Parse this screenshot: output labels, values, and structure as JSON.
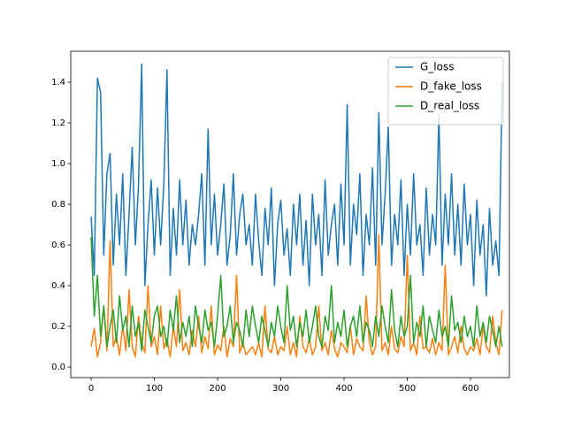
{
  "chart_data": {
    "type": "line",
    "x": [
      0,
      5,
      10,
      15,
      20,
      25,
      30,
      35,
      40,
      45,
      50,
      55,
      60,
      65,
      70,
      75,
      80,
      85,
      90,
      95,
      100,
      105,
      110,
      115,
      120,
      125,
      130,
      135,
      140,
      145,
      150,
      155,
      160,
      165,
      170,
      175,
      180,
      185,
      190,
      195,
      200,
      205,
      210,
      215,
      220,
      225,
      230,
      235,
      240,
      245,
      250,
      255,
      260,
      265,
      270,
      275,
      280,
      285,
      290,
      295,
      300,
      305,
      310,
      315,
      320,
      325,
      330,
      335,
      340,
      345,
      350,
      355,
      360,
      365,
      370,
      375,
      380,
      385,
      390,
      395,
      400,
      405,
      410,
      415,
      420,
      425,
      430,
      435,
      440,
      445,
      450,
      455,
      460,
      465,
      470,
      475,
      480,
      485,
      490,
      495,
      500,
      505,
      510,
      515,
      520,
      525,
      530,
      535,
      540,
      545,
      550,
      555,
      560,
      565,
      570,
      575,
      580,
      585,
      590,
      595,
      600,
      605,
      610,
      615,
      620,
      625,
      630,
      635,
      640,
      645,
      650
    ],
    "series": [
      {
        "name": "G_loss",
        "color": "#1f77b4",
        "values": [
          0.74,
          0.45,
          1.42,
          1.35,
          0.55,
          0.95,
          1.05,
          0.5,
          0.85,
          0.6,
          0.95,
          0.45,
          0.75,
          1.08,
          0.6,
          0.9,
          1.49,
          0.4,
          0.7,
          0.92,
          0.55,
          0.88,
          0.6,
          0.9,
          1.46,
          0.45,
          0.78,
          0.55,
          0.92,
          0.6,
          0.82,
          0.5,
          0.7,
          0.6,
          0.75,
          0.95,
          0.5,
          1.17,
          0.6,
          0.85,
          0.55,
          0.7,
          0.9,
          0.5,
          0.65,
          0.95,
          0.55,
          0.75,
          0.85,
          0.6,
          0.7,
          0.5,
          0.85,
          0.62,
          0.45,
          0.78,
          0.6,
          0.88,
          0.4,
          0.7,
          0.82,
          0.55,
          0.68,
          0.45,
          0.8,
          0.6,
          0.85,
          0.5,
          0.72,
          0.4,
          0.85,
          0.6,
          0.75,
          0.45,
          0.92,
          0.55,
          0.7,
          0.8,
          0.5,
          0.9,
          0.6,
          1.29,
          0.5,
          0.8,
          0.65,
          0.95,
          0.45,
          0.75,
          0.6,
          0.98,
          0.5,
          1.25,
          0.6,
          0.85,
          1.18,
          0.5,
          0.75,
          0.6,
          0.92,
          0.45,
          0.8,
          0.55,
          0.95,
          0.6,
          0.7,
          0.45,
          0.88,
          0.55,
          0.75,
          0.6,
          1.24,
          0.5,
          0.85,
          0.6,
          0.95,
          0.55,
          0.8,
          0.5,
          0.9,
          0.6,
          0.75,
          0.4,
          0.82,
          0.55,
          0.7,
          0.35,
          0.78,
          0.5,
          0.62,
          0.45,
          1.4
        ]
      },
      {
        "name": "D_fake_loss",
        "color": "#ff7f0e",
        "values": [
          0.1,
          0.19,
          0.05,
          0.12,
          0.3,
          0.08,
          0.62,
          0.1,
          0.15,
          0.06,
          0.2,
          0.08,
          0.38,
          0.1,
          0.05,
          0.25,
          0.12,
          0.07,
          0.4,
          0.1,
          0.15,
          0.06,
          0.3,
          0.09,
          0.14,
          0.05,
          0.2,
          0.1,
          0.38,
          0.08,
          0.12,
          0.06,
          0.18,
          0.1,
          0.25,
          0.07,
          0.15,
          0.09,
          0.3,
          0.06,
          0.11,
          0.08,
          0.2,
          0.05,
          0.14,
          0.1,
          0.45,
          0.07,
          0.12,
          0.06,
          0.08,
          0.1,
          0.06,
          0.12,
          0.05,
          0.3,
          0.09,
          0.07,
          0.15,
          0.06,
          0.1,
          0.08,
          0.2,
          0.06,
          0.12,
          0.05,
          0.25,
          0.1,
          0.07,
          0.14,
          0.06,
          0.1,
          0.3,
          0.08,
          0.12,
          0.06,
          0.18,
          0.09,
          0.05,
          0.12,
          0.1,
          0.07,
          0.2,
          0.06,
          0.14,
          0.1,
          0.08,
          0.35,
          0.12,
          0.06,
          0.1,
          0.65,
          0.08,
          0.12,
          0.06,
          0.2,
          0.09,
          0.07,
          0.15,
          0.1,
          0.55,
          0.08,
          0.12,
          0.06,
          0.25,
          0.09,
          0.1,
          0.07,
          0.14,
          0.06,
          0.12,
          0.08,
          0.5,
          0.06,
          0.1,
          0.15,
          0.07,
          0.2,
          0.09,
          0.06,
          0.1,
          0.08,
          0.14,
          0.06,
          0.2,
          0.1,
          0.07,
          0.25,
          0.12,
          0.06,
          0.28
        ]
      },
      {
        "name": "D_real_loss",
        "color": "#2ca02c",
        "values": [
          0.64,
          0.25,
          0.45,
          0.15,
          0.3,
          0.1,
          0.2,
          0.28,
          0.12,
          0.35,
          0.18,
          0.25,
          0.1,
          0.3,
          0.15,
          0.22,
          0.08,
          0.28,
          0.2,
          0.12,
          0.25,
          0.3,
          0.15,
          0.2,
          0.1,
          0.28,
          0.18,
          0.35,
          0.12,
          0.22,
          0.15,
          0.25,
          0.1,
          0.3,
          0.2,
          0.12,
          0.28,
          0.18,
          0.22,
          0.1,
          0.25,
          0.45,
          0.15,
          0.2,
          0.3,
          0.12,
          0.22,
          0.18,
          0.1,
          0.28,
          0.15,
          0.3,
          0.2,
          0.12,
          0.25,
          0.18,
          0.1,
          0.22,
          0.15,
          0.3,
          0.2,
          0.12,
          0.4,
          0.18,
          0.25,
          0.1,
          0.22,
          0.15,
          0.28,
          0.12,
          0.2,
          0.3,
          0.15,
          0.1,
          0.25,
          0.18,
          0.4,
          0.12,
          0.22,
          0.15,
          0.28,
          0.1,
          0.2,
          0.25,
          0.15,
          0.3,
          0.12,
          0.22,
          0.18,
          0.1,
          0.25,
          0.15,
          0.3,
          0.2,
          0.12,
          0.38,
          0.18,
          0.1,
          0.25,
          0.15,
          0.2,
          0.45,
          0.12,
          0.22,
          0.15,
          0.3,
          0.1,
          0.25,
          0.18,
          0.12,
          0.28,
          0.15,
          0.2,
          0.1,
          0.35,
          0.18,
          0.22,
          0.12,
          0.25,
          0.15,
          0.2,
          0.1,
          0.3,
          0.15,
          0.22,
          0.12,
          0.25,
          0.18,
          0.1,
          0.2,
          0.1
        ]
      }
    ],
    "xlim": [
      -32.2,
      661.5
    ],
    "ylim": [
      -0.052,
      1.552
    ],
    "xticks": [
      0,
      100,
      200,
      300,
      400,
      500,
      600
    ],
    "yticks": [
      {
        "value": 0,
        "label": "0.0"
      },
      {
        "value": 0.2,
        "label": "0.2"
      },
      {
        "value": 0.4,
        "label": "0.4"
      },
      {
        "value": 0.6,
        "label": "0.6"
      },
      {
        "value": 0.8,
        "label": "0.8"
      },
      {
        "value": 1,
        "label": "1.0"
      },
      {
        "value": 1.2,
        "label": "1.2"
      },
      {
        "value": 1.4,
        "label": "1.4"
      }
    ],
    "legend": "upper right"
  }
}
